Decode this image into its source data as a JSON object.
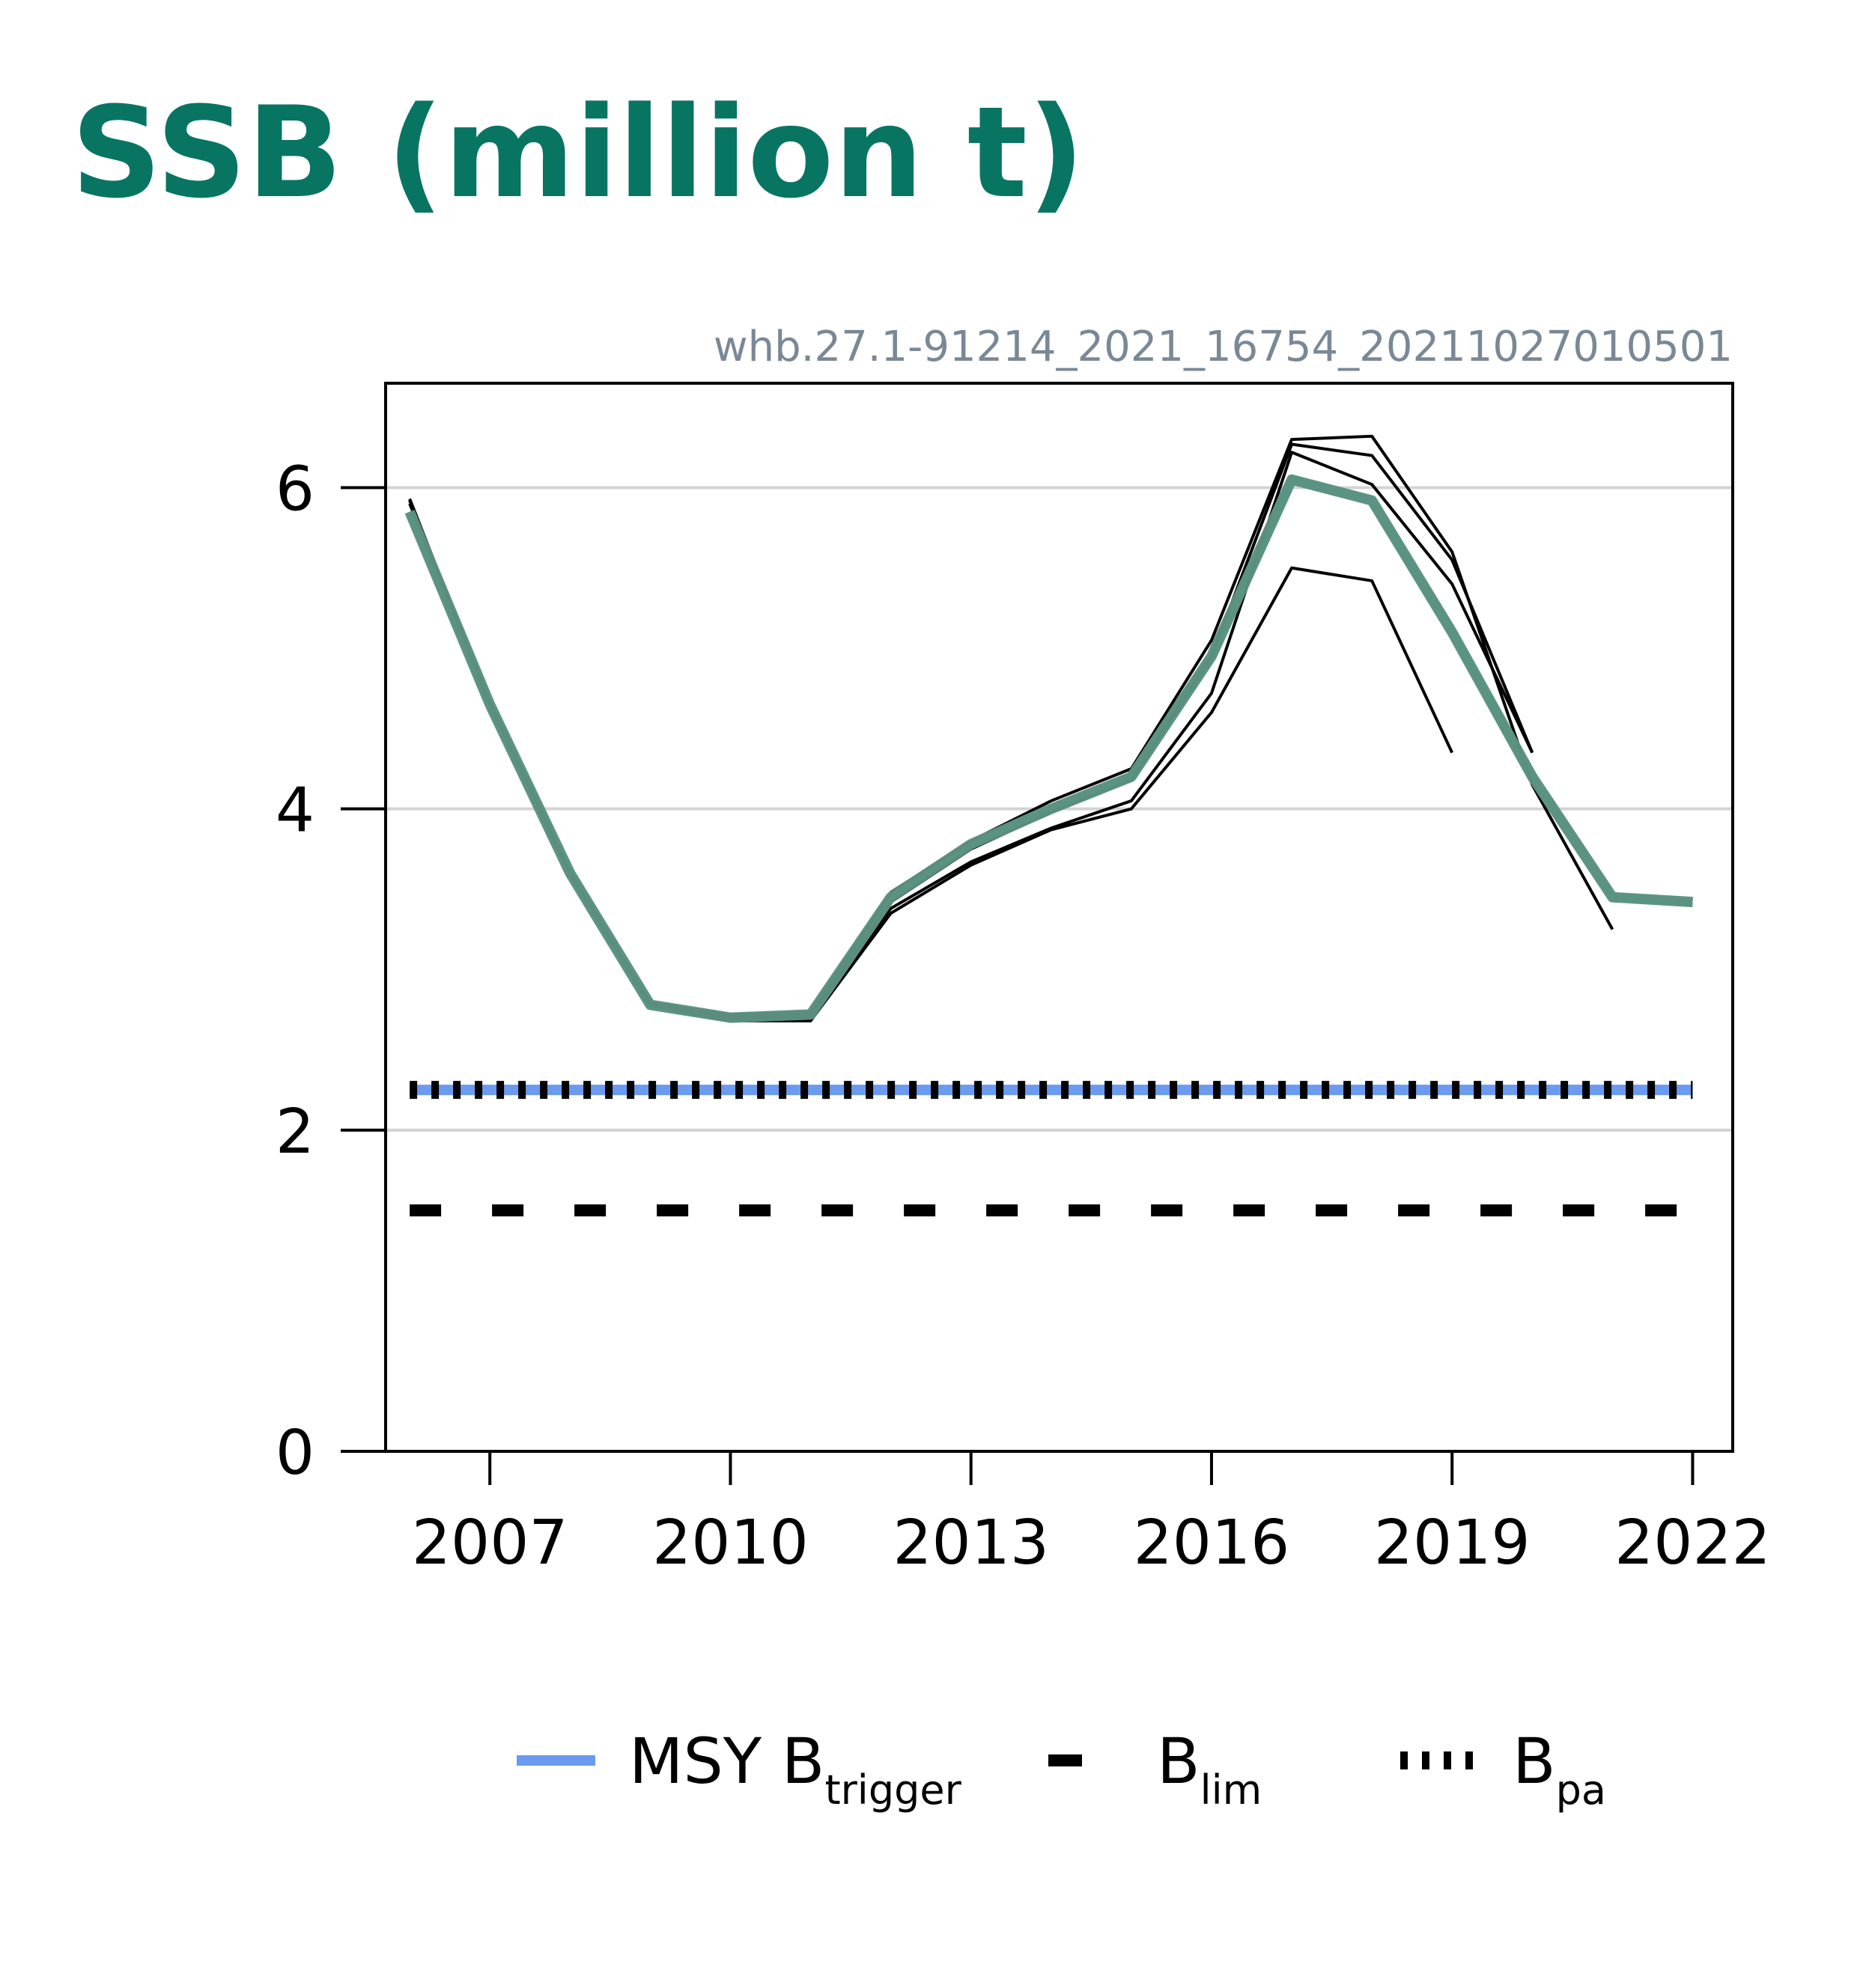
{
  "chart_data": {
    "type": "line",
    "title": "SSB (million t)",
    "subtitle": "whb.27.1-91214_2021_16754_20211027010501",
    "xlabel": "",
    "ylabel": "",
    "xlim": [
      2005.7,
      2022.5
    ],
    "ylim": [
      0,
      6.65
    ],
    "x_ticks": [
      2007,
      2010,
      2013,
      2016,
      2019,
      2022
    ],
    "y_ticks": [
      0,
      2,
      4,
      6
    ],
    "grid": true,
    "colors": {
      "main_series": "#087563",
      "latest_estimate": "#5f9585",
      "retrospective": "#000000",
      "msy_btrigger": "#6b9bf0",
      "blim": "#000000",
      "bpa": "#000000",
      "grid": "#d3d3d3"
    },
    "reference_points": {
      "msy_btrigger": 2.25,
      "blim": 1.5,
      "bpa": 2.25
    },
    "series": [
      {
        "role": "retrospective",
        "x": [
          2006,
          2007,
          2008,
          2009,
          2010,
          2011,
          2012,
          2013,
          2014,
          2015,
          2016,
          2017,
          2018,
          2019
        ],
        "y": [
          5.9,
          4.65,
          3.6,
          2.78,
          2.68,
          2.68,
          3.35,
          3.65,
          3.87,
          4.0,
          4.6,
          5.5,
          5.42,
          4.35
        ]
      },
      {
        "role": "retrospective",
        "x": [
          2006,
          2007,
          2008,
          2009,
          2010,
          2011,
          2012,
          2013,
          2014,
          2015,
          2016,
          2017,
          2018,
          2019,
          2020
        ],
        "y": [
          5.92,
          4.66,
          3.6,
          2.78,
          2.7,
          2.7,
          3.38,
          3.67,
          3.88,
          4.05,
          4.72,
          6.22,
          6.02,
          5.4,
          4.35
        ]
      },
      {
        "role": "retrospective",
        "x": [
          2006,
          2007,
          2008,
          2009,
          2010,
          2011,
          2012,
          2013,
          2014,
          2015,
          2016,
          2017,
          2018,
          2019,
          2020
        ],
        "y": [
          5.93,
          4.66,
          3.6,
          2.79,
          2.71,
          2.71,
          3.42,
          3.75,
          3.98,
          4.18,
          4.95,
          6.27,
          6.2,
          5.55,
          4.35
        ]
      },
      {
        "role": "retrospective",
        "x": [
          2006,
          2007,
          2008,
          2009,
          2010,
          2011,
          2012,
          2013,
          2014,
          2015,
          2016,
          2017,
          2018,
          2019,
          2020,
          2021
        ],
        "y": [
          5.92,
          4.66,
          3.6,
          2.79,
          2.72,
          2.73,
          3.48,
          3.8,
          4.05,
          4.25,
          5.05,
          6.3,
          6.32,
          5.6,
          4.15,
          3.25
        ]
      },
      {
        "role": "latest_estimate",
        "x": [
          2006,
          2007,
          2008,
          2009,
          2010,
          2011,
          2012,
          2013,
          2014,
          2015,
          2016,
          2017,
          2018,
          2019,
          2020,
          2021,
          2022
        ],
        "y": [
          5.85,
          4.65,
          3.6,
          2.78,
          2.7,
          2.72,
          3.45,
          3.78,
          4.0,
          4.2,
          4.95,
          6.05,
          5.92,
          5.1,
          4.2,
          3.45,
          3.42
        ]
      }
    ],
    "legend": {
      "placement": "bottom",
      "entries": [
        {
          "key": "msy_btrigger",
          "label": "MSY B",
          "sub": "trigger"
        },
        {
          "key": "blim",
          "label": "B",
          "sub": "lim"
        },
        {
          "key": "bpa",
          "label": "B",
          "sub": "pa"
        }
      ]
    }
  }
}
